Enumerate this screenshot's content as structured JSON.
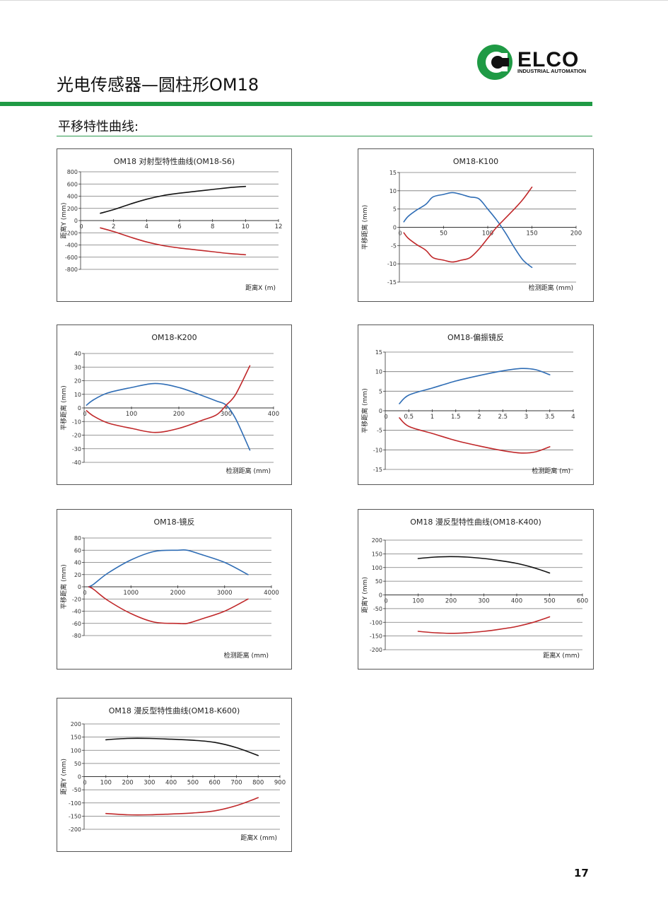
{
  "page": {
    "title": "光电传感器—圆柱形OM18",
    "section_title": "平移特性曲线:",
    "page_number": "17"
  },
  "logo": {
    "brand": "ELCO",
    "tagline": "INDUSTRIAL AUTOMATION",
    "colors": {
      "green": "#1f9a45",
      "dark": "#111111"
    }
  },
  "colors": {
    "blue": "#2f6db5",
    "red": "#c0282a",
    "black": "#111111",
    "grid": "#777777"
  },
  "chart_data": [
    {
      "id": "s6",
      "type": "line",
      "title": "OM18 对射型特性曲线(OM18-S6)",
      "ylabel": "距离Y (mm)",
      "xlabel": "距离X (m)",
      "xlim": [
        0,
        12
      ],
      "ylim": [
        -800,
        800
      ],
      "xticks": [
        2,
        4,
        6,
        8,
        10,
        12
      ],
      "xtick_labels": [
        "2",
        "4",
        "6",
        "8",
        "10",
        "12"
      ],
      "yticks": [
        800,
        600,
        400,
        200,
        0,
        -200,
        -400,
        -600,
        -800
      ],
      "ytick_labels": [
        "800",
        "600",
        "400",
        "200",
        "0",
        "-200",
        "-400",
        "-600",
        "-800"
      ],
      "x0_label": "0",
      "xlabels_at_zero": true,
      "series": [
        {
          "color": "black",
          "x": [
            1.2,
            2,
            3,
            4,
            5,
            6,
            7,
            8,
            9,
            10
          ],
          "y": [
            120,
            180,
            270,
            350,
            410,
            450,
            480,
            510,
            540,
            560
          ]
        },
        {
          "color": "red",
          "x": [
            1.2,
            2,
            3,
            4,
            5,
            6,
            7,
            8,
            9,
            10
          ],
          "y": [
            -120,
            -180,
            -270,
            -350,
            -410,
            -450,
            -480,
            -510,
            -540,
            -560
          ]
        }
      ]
    },
    {
      "id": "k100",
      "type": "line",
      "title": "OM18-K100",
      "ylabel": "平移距离 (mm)",
      "xlabel": "检测距离 (mm)",
      "xlim": [
        0,
        200
      ],
      "ylim": [
        -15,
        15
      ],
      "xticks": [
        50,
        100,
        150,
        200
      ],
      "xtick_labels": [
        "50",
        "100",
        "150",
        "200"
      ],
      "yticks": [
        15,
        10,
        5,
        0,
        -5,
        -10,
        -15
      ],
      "ytick_labels": [
        "15",
        "10",
        "5",
        "0",
        "-5",
        "-10",
        "-15"
      ],
      "x0_label": "0",
      "xlabels_at_zero": true,
      "series": [
        {
          "color": "blue",
          "x": [
            5,
            10,
            20,
            30,
            38,
            50,
            60,
            70,
            80,
            90,
            100,
            110,
            120,
            130,
            140,
            150
          ],
          "y": [
            1.5,
            3,
            4.8,
            6.3,
            8.3,
            9,
            9.5,
            9,
            8.3,
            7.8,
            5,
            2,
            -1.5,
            -5.5,
            -9,
            -11
          ]
        },
        {
          "color": "red",
          "x": [
            5,
            10,
            20,
            30,
            38,
            50,
            60,
            70,
            80,
            90,
            100,
            110,
            120,
            130,
            140,
            150
          ],
          "y": [
            -1.5,
            -3,
            -4.8,
            -6.3,
            -8.3,
            -9,
            -9.5,
            -9,
            -8.3,
            -6,
            -3,
            0,
            2.5,
            5,
            7.7,
            11
          ]
        }
      ]
    },
    {
      "id": "k200",
      "type": "line",
      "title": "OM18-K200",
      "ylabel": "平移距离 (mm)",
      "xlabel": "检测距离 (mm)",
      "xlim": [
        0,
        400
      ],
      "ylim": [
        -40,
        40
      ],
      "xticks": [
        100,
        200,
        300,
        400
      ],
      "xtick_labels": [
        "100",
        "200",
        "300",
        "400"
      ],
      "yticks": [
        40,
        30,
        20,
        10,
        0,
        -10,
        -20,
        -30,
        -40
      ],
      "ytick_labels": [
        "40",
        "30",
        "20",
        "10",
        "0",
        "-10",
        "-20",
        "-30",
        "-40"
      ],
      "x0_label": "0",
      "xlabels_at_zero": true,
      "series": [
        {
          "color": "blue",
          "x": [
            5,
            20,
            50,
            100,
            150,
            200,
            250,
            280,
            300,
            320,
            350
          ],
          "y": [
            2,
            6,
            11,
            15,
            18,
            15,
            9,
            5,
            2,
            -8,
            -31
          ]
        },
        {
          "color": "red",
          "x": [
            5,
            20,
            50,
            100,
            150,
            200,
            250,
            280,
            300,
            320,
            350
          ],
          "y": [
            -2,
            -6,
            -11,
            -15,
            -18,
            -15,
            -9,
            -5,
            2,
            10,
            31
          ]
        }
      ]
    },
    {
      "id": "polar",
      "type": "line",
      "title": "OM18-偏振镜反",
      "ylabel": "平移距离 (mm)",
      "xlabel": "检测距离 (m)",
      "xlim": [
        0,
        4
      ],
      "ylim": [
        -15,
        15
      ],
      "xticks": [
        0.5,
        1,
        1.5,
        2,
        2.5,
        3,
        3.5,
        4
      ],
      "xtick_labels": [
        "0.5",
        "1",
        "1.5",
        "2",
        "2.5",
        "3",
        "3.5",
        "4"
      ],
      "yticks": [
        15,
        10,
        5,
        0,
        -5,
        -10,
        -15
      ],
      "ytick_labels": [
        "15",
        "10",
        "5",
        "0",
        "-5",
        "-10",
        "-15"
      ],
      "x0_label": "0",
      "xlabels_at_zero": true,
      "series": [
        {
          "color": "blue",
          "x": [
            0.3,
            0.5,
            1,
            1.5,
            2,
            2.5,
            2.9,
            3.2,
            3.5
          ],
          "y": [
            1.8,
            4,
            5.8,
            7.6,
            9,
            10.2,
            10.8,
            10.5,
            9.2
          ]
        },
        {
          "color": "red",
          "x": [
            0.3,
            0.5,
            1,
            1.5,
            2,
            2.5,
            2.9,
            3.2,
            3.5
          ],
          "y": [
            -1.8,
            -4,
            -5.8,
            -7.6,
            -9,
            -10.2,
            -10.8,
            -10.5,
            -9.2
          ]
        }
      ]
    },
    {
      "id": "mirror",
      "type": "line",
      "title": "OM18-镜反",
      "ylabel": "平移距离 (mm)",
      "xlabel": "检测距离 (mm)",
      "xlim": [
        0,
        4000
      ],
      "ylim": [
        -80,
        80
      ],
      "xticks": [
        1000,
        2000,
        3000,
        4000
      ],
      "xtick_labels": [
        "1000",
        "2000",
        "3000",
        "4000"
      ],
      "yticks": [
        80,
        60,
        40,
        20,
        0,
        -20,
        -40,
        -60,
        -80
      ],
      "ytick_labels": [
        "80",
        "60",
        "40",
        "20",
        "0",
        "-20",
        "-40",
        "-60",
        "-80"
      ],
      "x0_label": "0",
      "xlabels_at_zero": true,
      "series": [
        {
          "color": "blue",
          "x": [
            100,
            200,
            500,
            1000,
            1500,
            2000,
            2200,
            2500,
            3000,
            3500
          ],
          "y": [
            0,
            4,
            22,
            44,
            58,
            60,
            60,
            53,
            40,
            20
          ]
        },
        {
          "color": "red",
          "x": [
            100,
            200,
            500,
            1000,
            1500,
            2000,
            2200,
            2500,
            3000,
            3500
          ],
          "y": [
            0,
            -4,
            -22,
            -44,
            -58,
            -60,
            -60,
            -53,
            -40,
            -20
          ]
        }
      ]
    },
    {
      "id": "k400",
      "type": "line",
      "title": "OM18 漫反型特性曲线(OM18-K400)",
      "ylabel": "距离Y (mm)",
      "xlabel": "距离X (mm)",
      "xlim": [
        0,
        600
      ],
      "ylim": [
        -200,
        200
      ],
      "xticks": [
        100,
        200,
        300,
        400,
        500,
        600
      ],
      "xtick_labels": [
        "100",
        "200",
        "300",
        "400",
        "500",
        "600"
      ],
      "yticks": [
        200,
        150,
        100,
        50,
        0,
        -50,
        -100,
        -150,
        -200
      ],
      "ytick_labels": [
        "200",
        "150",
        "100",
        "50",
        "0",
        "-50",
        "-100",
        "-150",
        "-200"
      ],
      "x0_label": "0",
      "xlabels_at_zero": true,
      "series": [
        {
          "color": "black",
          "x": [
            100,
            150,
            200,
            250,
            300,
            350,
            400,
            450,
            500
          ],
          "y": [
            133,
            138,
            140,
            138,
            133,
            125,
            115,
            100,
            80
          ]
        },
        {
          "color": "red",
          "x": [
            100,
            150,
            200,
            250,
            300,
            350,
            400,
            450,
            500
          ],
          "y": [
            -133,
            -138,
            -140,
            -138,
            -133,
            -125,
            -115,
            -100,
            -80
          ]
        }
      ]
    },
    {
      "id": "k600",
      "type": "line",
      "title": "OM18 漫反型特性曲线(OM18-K600)",
      "ylabel": "距离Y (mm)",
      "xlabel": "距离X (mm)",
      "xlim": [
        0,
        900
      ],
      "ylim": [
        -200,
        200
      ],
      "xticks": [
        100,
        200,
        300,
        400,
        500,
        600,
        700,
        800,
        900
      ],
      "xtick_labels": [
        "100",
        "200",
        "300",
        "400",
        "500",
        "600",
        "700",
        "800",
        "900"
      ],
      "yticks": [
        200,
        150,
        100,
        50,
        0,
        -50,
        -100,
        -150,
        -200
      ],
      "ytick_labels": [
        "200",
        "150",
        "100",
        "50",
        "0",
        "-50",
        "-100",
        "-150",
        "-200"
      ],
      "x0_label": "0",
      "xlabels_at_zero": true,
      "series": [
        {
          "color": "black",
          "x": [
            100,
            200,
            300,
            400,
            500,
            600,
            700,
            800
          ],
          "y": [
            140,
            145,
            145,
            142,
            138,
            130,
            110,
            80
          ]
        },
        {
          "color": "red",
          "x": [
            100,
            200,
            300,
            400,
            500,
            600,
            700,
            800
          ],
          "y": [
            -140,
            -145,
            -145,
            -142,
            -138,
            -130,
            -110,
            -80
          ]
        }
      ]
    }
  ]
}
